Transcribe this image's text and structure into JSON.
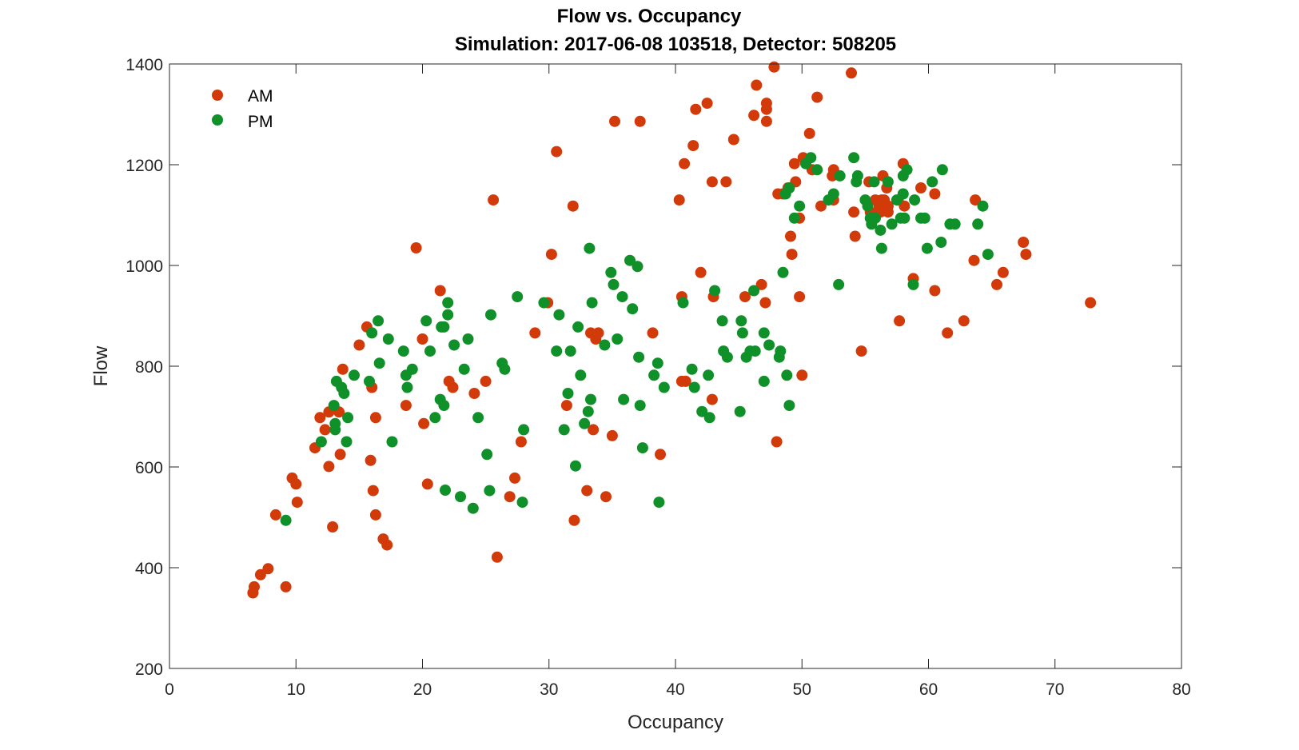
{
  "chart_data": {
    "type": "scatter",
    "title": "Flow vs. Occupancy",
    "subtitle": "Simulation:  2017-06-08 103518,  Detector:  508205",
    "xlabel": "Occupancy",
    "ylabel": "Flow",
    "xlim": [
      0,
      80
    ],
    "ylim": [
      200,
      1400
    ],
    "xticks": [
      0,
      10,
      20,
      30,
      40,
      50,
      60,
      70,
      80
    ],
    "yticks": [
      200,
      400,
      600,
      800,
      1000,
      1200,
      1400
    ],
    "xtick_labels": [
      "0",
      "10",
      "20",
      "30",
      "40",
      "50",
      "60",
      "70",
      "80"
    ],
    "ytick_labels": [
      "200",
      "400",
      "600",
      "800",
      "1000",
      "1200",
      "1400"
    ],
    "grid": false,
    "legend": "top-left",
    "series": [
      {
        "name": "AM",
        "color": "#D23A0A",
        "points": [
          [
            6.6,
            350
          ],
          [
            6.7,
            362
          ],
          [
            7.2,
            386
          ],
          [
            7.8,
            398
          ],
          [
            8.4,
            505
          ],
          [
            9.2,
            362
          ],
          [
            9.7,
            578
          ],
          [
            10.0,
            566
          ],
          [
            10.1,
            530
          ],
          [
            11.5,
            638
          ],
          [
            11.9,
            698
          ],
          [
            12.3,
            674
          ],
          [
            12.6,
            601
          ],
          [
            12.6,
            709
          ],
          [
            12.9,
            481
          ],
          [
            13.4,
            709
          ],
          [
            13.5,
            625
          ],
          [
            13.7,
            794
          ],
          [
            15.0,
            842
          ],
          [
            15.6,
            878
          ],
          [
            15.9,
            613
          ],
          [
            16.0,
            758
          ],
          [
            16.1,
            553
          ],
          [
            16.3,
            505
          ],
          [
            16.3,
            698
          ],
          [
            16.9,
            457
          ],
          [
            17.2,
            445
          ],
          [
            18.7,
            722
          ],
          [
            19.5,
            1035
          ],
          [
            20.0,
            854
          ],
          [
            20.1,
            686
          ],
          [
            20.4,
            566
          ],
          [
            21.4,
            950
          ],
          [
            22.1,
            770
          ],
          [
            22.4,
            758
          ],
          [
            24.1,
            746
          ],
          [
            25.0,
            770
          ],
          [
            25.6,
            1130
          ],
          [
            25.9,
            421
          ],
          [
            26.9,
            541
          ],
          [
            27.3,
            578
          ],
          [
            27.8,
            650
          ],
          [
            28.9,
            866
          ],
          [
            29.9,
            926
          ],
          [
            30.2,
            1022
          ],
          [
            30.6,
            1226
          ],
          [
            31.4,
            722
          ],
          [
            31.9,
            1118
          ],
          [
            32.0,
            494
          ],
          [
            33.0,
            553
          ],
          [
            33.3,
            866
          ],
          [
            33.5,
            674
          ],
          [
            33.7,
            854
          ],
          [
            33.9,
            866
          ],
          [
            34.5,
            541
          ],
          [
            35.0,
            662
          ],
          [
            35.2,
            1286
          ],
          [
            37.2,
            1286
          ],
          [
            38.2,
            866
          ],
          [
            38.8,
            625
          ],
          [
            40.3,
            1130
          ],
          [
            40.5,
            938
          ],
          [
            40.5,
            770
          ],
          [
            40.7,
            1202
          ],
          [
            40.8,
            770
          ],
          [
            41.4,
            1238
          ],
          [
            41.6,
            1310
          ],
          [
            42.0,
            986
          ],
          [
            42.5,
            1322
          ],
          [
            42.9,
            734
          ],
          [
            42.9,
            1166
          ],
          [
            43.0,
            938
          ],
          [
            44.0,
            1166
          ],
          [
            44.6,
            1250
          ],
          [
            45.5,
            938
          ],
          [
            46.2,
            1298
          ],
          [
            46.4,
            1358
          ],
          [
            46.8,
            962
          ],
          [
            47.1,
            926
          ],
          [
            47.2,
            1322
          ],
          [
            47.2,
            1310
          ],
          [
            47.2,
            1286
          ],
          [
            47.8,
            1394
          ],
          [
            48.0,
            650
          ],
          [
            48.1,
            1142
          ],
          [
            48.5,
            1142
          ],
          [
            48.9,
            1154
          ],
          [
            49.1,
            1058
          ],
          [
            49.2,
            1022
          ],
          [
            49.4,
            1202
          ],
          [
            49.5,
            1166
          ],
          [
            49.8,
            938
          ],
          [
            49.8,
            1094
          ],
          [
            50.0,
            782
          ],
          [
            50.1,
            1214
          ],
          [
            50.6,
            1262
          ],
          [
            50.8,
            1190
          ],
          [
            51.2,
            1334
          ],
          [
            51.5,
            1118
          ],
          [
            52.4,
            1178
          ],
          [
            52.5,
            1190
          ],
          [
            52.5,
            1130
          ],
          [
            53.9,
            1382
          ],
          [
            54.1,
            1106
          ],
          [
            54.2,
            1058
          ],
          [
            54.7,
            830
          ],
          [
            55.3,
            1166
          ],
          [
            55.4,
            1106
          ],
          [
            55.5,
            1094
          ],
          [
            55.8,
            1130
          ],
          [
            56.1,
            1118
          ],
          [
            56.2,
            1106
          ],
          [
            56.3,
            1130
          ],
          [
            56.3,
            1118
          ],
          [
            56.4,
            1178
          ],
          [
            56.5,
            1130
          ],
          [
            56.7,
            1154
          ],
          [
            56.8,
            1118
          ],
          [
            56.8,
            1106
          ],
          [
            56.8,
            1118
          ],
          [
            57.6,
            1130
          ],
          [
            57.7,
            890
          ],
          [
            58.0,
            1202
          ],
          [
            58.1,
            1118
          ],
          [
            58.8,
            974
          ],
          [
            59.4,
            1154
          ],
          [
            60.5,
            1142
          ],
          [
            60.5,
            950
          ],
          [
            61.5,
            866
          ],
          [
            62.8,
            890
          ],
          [
            63.6,
            1010
          ],
          [
            63.7,
            1130
          ],
          [
            65.4,
            962
          ],
          [
            65.9,
            986
          ],
          [
            67.5,
            1046
          ],
          [
            67.7,
            1022
          ],
          [
            72.8,
            926
          ]
        ]
      },
      {
        "name": "PM",
        "color": "#0F9028",
        "points": [
          [
            9.2,
            494
          ],
          [
            12.0,
            650
          ],
          [
            13.0,
            722
          ],
          [
            13.1,
            686
          ],
          [
            13.1,
            674
          ],
          [
            13.2,
            770
          ],
          [
            13.6,
            758
          ],
          [
            13.8,
            746
          ],
          [
            14.0,
            650
          ],
          [
            14.1,
            698
          ],
          [
            14.6,
            782
          ],
          [
            15.8,
            770
          ],
          [
            16.0,
            866
          ],
          [
            16.5,
            890
          ],
          [
            16.6,
            806
          ],
          [
            17.3,
            854
          ],
          [
            17.6,
            650
          ],
          [
            18.5,
            830
          ],
          [
            18.7,
            782
          ],
          [
            18.8,
            758
          ],
          [
            19.2,
            794
          ],
          [
            20.3,
            890
          ],
          [
            20.6,
            830
          ],
          [
            21.0,
            698
          ],
          [
            21.4,
            734
          ],
          [
            21.5,
            878
          ],
          [
            21.7,
            878
          ],
          [
            21.7,
            722
          ],
          [
            21.8,
            554
          ],
          [
            22.0,
            926
          ],
          [
            22.0,
            902
          ],
          [
            22.5,
            842
          ],
          [
            23.0,
            541
          ],
          [
            23.3,
            794
          ],
          [
            23.6,
            854
          ],
          [
            24.0,
            518
          ],
          [
            24.4,
            698
          ],
          [
            25.1,
            625
          ],
          [
            25.3,
            553
          ],
          [
            25.4,
            902
          ],
          [
            26.3,
            806
          ],
          [
            26.5,
            794
          ],
          [
            27.5,
            938
          ],
          [
            27.9,
            530
          ],
          [
            28.0,
            674
          ],
          [
            29.6,
            926
          ],
          [
            30.6,
            830
          ],
          [
            30.8,
            902
          ],
          [
            31.2,
            674
          ],
          [
            31.5,
            746
          ],
          [
            31.7,
            830
          ],
          [
            32.1,
            602
          ],
          [
            32.3,
            878
          ],
          [
            32.5,
            782
          ],
          [
            32.8,
            686
          ],
          [
            33.1,
            710
          ],
          [
            33.2,
            1034
          ],
          [
            33.3,
            734
          ],
          [
            33.4,
            926
          ],
          [
            34.4,
            842
          ],
          [
            34.9,
            986
          ],
          [
            35.1,
            962
          ],
          [
            35.4,
            854
          ],
          [
            35.8,
            938
          ],
          [
            35.9,
            734
          ],
          [
            36.4,
            1010
          ],
          [
            36.6,
            914
          ],
          [
            37.0,
            998
          ],
          [
            37.1,
            818
          ],
          [
            37.2,
            722
          ],
          [
            37.4,
            638
          ],
          [
            38.3,
            782
          ],
          [
            38.6,
            806
          ],
          [
            38.7,
            530
          ],
          [
            39.1,
            758
          ],
          [
            40.6,
            926
          ],
          [
            41.3,
            794
          ],
          [
            41.5,
            758
          ],
          [
            42.1,
            710
          ],
          [
            42.6,
            782
          ],
          [
            42.7,
            698
          ],
          [
            43.1,
            950
          ],
          [
            43.7,
            890
          ],
          [
            43.8,
            830
          ],
          [
            44.1,
            818
          ],
          [
            45.1,
            710
          ],
          [
            45.2,
            890
          ],
          [
            45.3,
            866
          ],
          [
            45.6,
            818
          ],
          [
            45.9,
            830
          ],
          [
            46.2,
            950
          ],
          [
            46.3,
            830
          ],
          [
            47.0,
            866
          ],
          [
            47.0,
            770
          ],
          [
            47.4,
            842
          ],
          [
            48.2,
            818
          ],
          [
            48.3,
            830
          ],
          [
            48.5,
            986
          ],
          [
            48.7,
            1142
          ],
          [
            48.8,
            782
          ],
          [
            49.0,
            722
          ],
          [
            49.0,
            1154
          ],
          [
            49.4,
            1094
          ],
          [
            49.8,
            1118
          ],
          [
            50.3,
            1202
          ],
          [
            50.7,
            1214
          ],
          [
            51.2,
            1190
          ],
          [
            52.1,
            1130
          ],
          [
            52.5,
            1142
          ],
          [
            52.9,
            962
          ],
          [
            53.0,
            1178
          ],
          [
            54.1,
            1214
          ],
          [
            54.3,
            1166
          ],
          [
            54.4,
            1178
          ],
          [
            55.0,
            1130
          ],
          [
            55.2,
            1118
          ],
          [
            55.4,
            1094
          ],
          [
            55.5,
            1082
          ],
          [
            55.7,
            1166
          ],
          [
            55.8,
            1094
          ],
          [
            56.2,
            1070
          ],
          [
            56.3,
            1034
          ],
          [
            56.8,
            1166
          ],
          [
            57.1,
            1082
          ],
          [
            57.5,
            1130
          ],
          [
            57.8,
            1094
          ],
          [
            58.0,
            1142
          ],
          [
            58.0,
            1178
          ],
          [
            58.1,
            1094
          ],
          [
            58.3,
            1190
          ],
          [
            58.8,
            962
          ],
          [
            58.9,
            1130
          ],
          [
            59.4,
            1094
          ],
          [
            59.7,
            1094
          ],
          [
            59.9,
            1034
          ],
          [
            60.3,
            1166
          ],
          [
            61.0,
            1046
          ],
          [
            61.1,
            1190
          ],
          [
            61.7,
            1082
          ],
          [
            62.1,
            1082
          ],
          [
            63.9,
            1082
          ],
          [
            64.3,
            1118
          ],
          [
            64.7,
            1022
          ]
        ]
      }
    ]
  }
}
